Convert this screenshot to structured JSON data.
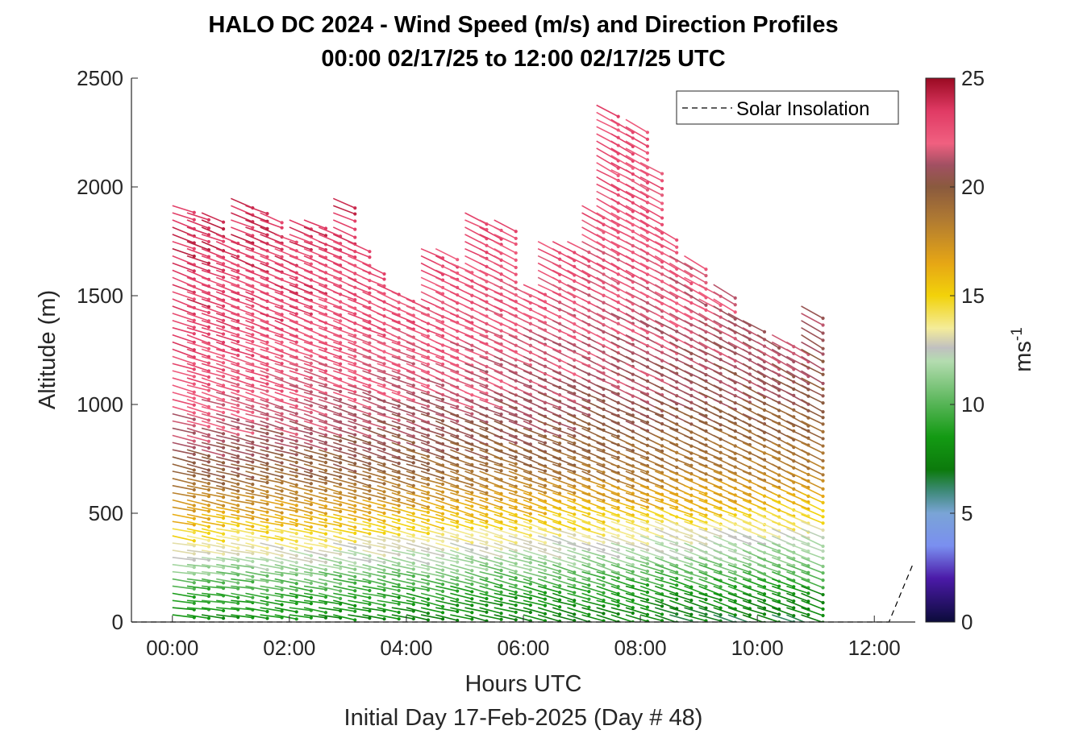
{
  "chart_data": {
    "type": "wind-barb-profile",
    "title": "HALO DC 2024 - Wind Speed (m/s) and Direction Profiles",
    "subtitle": "00:00 02/17/25 to 12:00 02/17/25  UTC",
    "xlabel": "Hours UTC",
    "xlabel2": "Initial Day 17-Feb-2025 (Day # 48)",
    "ylabel": "Altitude (m)",
    "xlim": [
      -0.7,
      12.7
    ],
    "ylim": [
      0,
      2500
    ],
    "x_ticks": [
      0,
      2,
      4,
      6,
      8,
      10,
      12
    ],
    "x_tick_labels": [
      "00:00",
      "02:00",
      "04:00",
      "06:00",
      "08:00",
      "10:00",
      "12:00"
    ],
    "y_ticks": [
      0,
      500,
      1000,
      1500,
      2000,
      2500
    ],
    "y_tick_labels": [
      "0",
      "500",
      "1000",
      "1500",
      "2000",
      "2500"
    ],
    "colorbar": {
      "label": "ms",
      "label_exponent": "-1",
      "range": [
        0,
        25
      ],
      "ticks": [
        0,
        5,
        10,
        15,
        20,
        25
      ],
      "tick_labels": [
        "0",
        "5",
        "10",
        "15",
        "20",
        "25"
      ],
      "colors": [
        {
          "v": 0,
          "c": "#0b0b3a"
        },
        {
          "v": 2,
          "c": "#4b1aa8"
        },
        {
          "v": 3.5,
          "c": "#7a8ff0"
        },
        {
          "v": 5,
          "c": "#7aa4d6"
        },
        {
          "v": 6,
          "c": "#3f8a7a"
        },
        {
          "v": 7,
          "c": "#0c7a0c"
        },
        {
          "v": 8.5,
          "c": "#139a13"
        },
        {
          "v": 10,
          "c": "#55b455"
        },
        {
          "v": 12,
          "c": "#b4dcb0"
        },
        {
          "v": 12.6,
          "c": "#c0c0c0"
        },
        {
          "v": 13.5,
          "c": "#f4ec9a"
        },
        {
          "v": 15,
          "c": "#f2d20a"
        },
        {
          "v": 16.5,
          "c": "#e6a615"
        },
        {
          "v": 18.5,
          "c": "#b07a32"
        },
        {
          "v": 20,
          "c": "#8a5a3e"
        },
        {
          "v": 21,
          "c": "#a15062"
        },
        {
          "v": 22,
          "c": "#f06080"
        },
        {
          "v": 23.5,
          "c": "#e03a64"
        },
        {
          "v": 25,
          "c": "#9a0a22"
        }
      ]
    },
    "legend": {
      "entry": "Solar Insolation",
      "placement": "top-right",
      "style": "dashed"
    },
    "profile_times_hours": [
      0,
      0.25,
      0.5,
      0.75,
      1,
      1.25,
      1.5,
      1.75,
      2,
      2.25,
      2.5,
      2.75,
      3,
      3.25,
      3.5,
      3.75,
      4,
      4.25,
      4.5,
      4.75,
      5,
      5.25,
      5.5,
      5.75,
      6,
      6.25,
      6.5,
      6.75,
      7,
      7.25,
      7.5,
      7.75,
      8,
      8.25,
      8.5,
      8.75,
      9,
      9.25,
      9.5,
      9.75,
      10,
      10.25,
      10.5,
      10.75
    ],
    "profile_top_altitude_m": [
      1920,
      1910,
      1900,
      1800,
      1950,
      1930,
      1910,
      1790,
      1880,
      1860,
      1840,
      1950,
      1760,
      1680,
      1570,
      1530,
      1500,
      1740,
      1730,
      1650,
      1900,
      1880,
      1860,
      1580,
      1580,
      1760,
      1760,
      1760,
      1920,
      2380,
      2340,
      2320,
      2140,
      1840,
      1710,
      1700,
      1570,
      1570,
      1420,
      1400,
      1340,
      1320,
      1300,
      1460
    ],
    "gate_spacing_m": 33,
    "gate_start_m": 33,
    "speed_profile_model": [
      {
        "alt": 0,
        "v": 8
      },
      {
        "alt": 150,
        "v": 9.5
      },
      {
        "alt": 280,
        "v": 12
      },
      {
        "alt": 400,
        "v": 14.5
      },
      {
        "alt": 550,
        "v": 17.5
      },
      {
        "alt": 700,
        "v": 20
      },
      {
        "alt": 900,
        "v": 21.5
      },
      {
        "alt": 1100,
        "v": 22.5
      },
      {
        "alt": 1500,
        "v": 23.5
      },
      {
        "alt": 2400,
        "v": 24.5
      }
    ],
    "solar_insolation": {
      "x": [
        -0.7,
        12.25,
        12.65
      ],
      "y": [
        0,
        0,
        260
      ]
    }
  }
}
